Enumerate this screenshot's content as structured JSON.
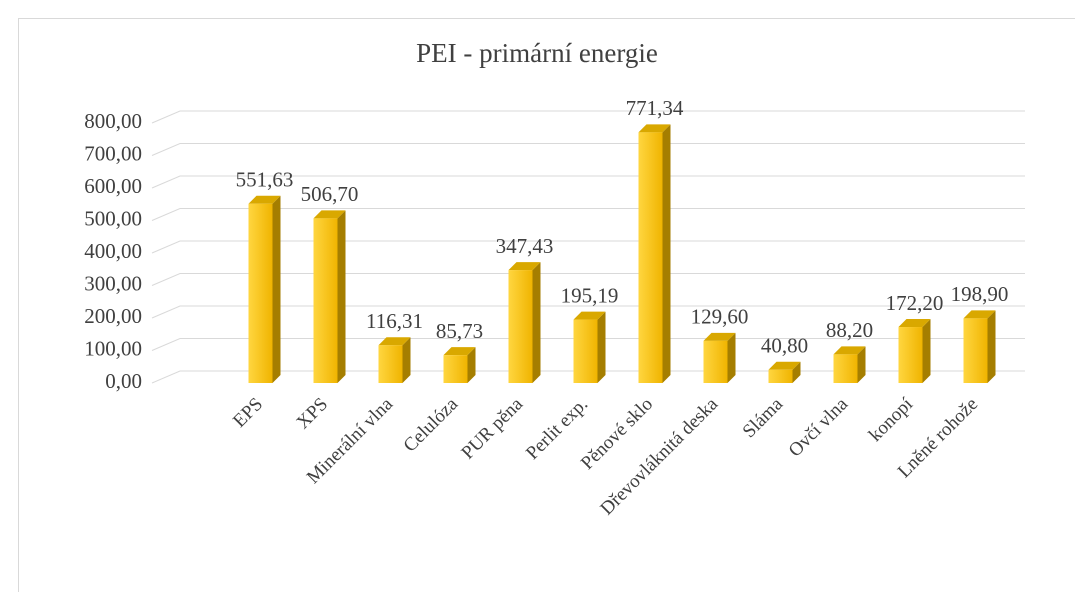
{
  "chart_data": {
    "type": "bar3d",
    "title": "PEI - primární energie",
    "categories": [
      "EPS",
      "XPS",
      "Minerální vlna",
      "Celulóza",
      "PUR pěna",
      "Perlit exp.",
      "Pěnové sklo",
      "Dřevovláknitá deska",
      "Sláma",
      "Ovčí vlna",
      "konopí",
      "Lněné rohože"
    ],
    "values": [
      551.63,
      506.7,
      116.31,
      85.73,
      347.43,
      195.19,
      771.34,
      129.6,
      40.8,
      88.2,
      172.2,
      198.9
    ],
    "value_labels": [
      "551,63",
      "506,70",
      "116,31",
      "85,73",
      "347,43",
      "195,19",
      "771,34",
      "129,60",
      "40,80",
      "88,20",
      "172,20",
      "198,90"
    ],
    "color": "#f5c000",
    "ylim": [
      0,
      800
    ],
    "yticks": [
      {
        "value": 0,
        "label": "0,00"
      },
      {
        "value": 100,
        "label": "100,00"
      },
      {
        "value": 200,
        "label": "200,00"
      },
      {
        "value": 300,
        "label": "300,00"
      },
      {
        "value": 400,
        "label": "400,00"
      },
      {
        "value": 500,
        "label": "500,00"
      },
      {
        "value": 600,
        "label": "600,00"
      },
      {
        "value": 700,
        "label": "700,00"
      },
      {
        "value": 800,
        "label": "800,00"
      }
    ],
    "grid": true
  }
}
